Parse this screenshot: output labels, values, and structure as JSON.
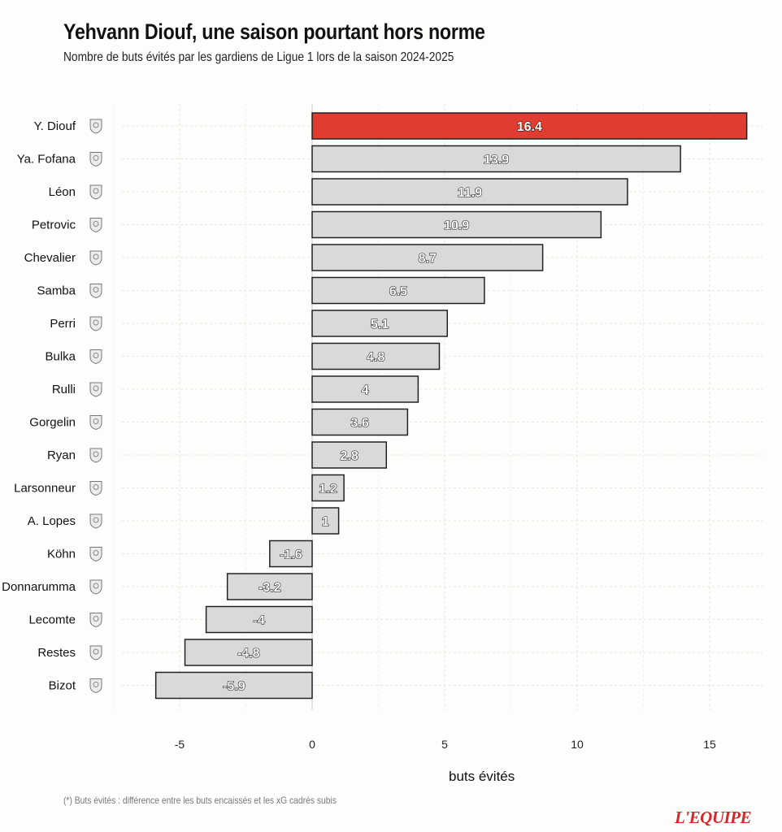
{
  "header": {
    "title": "Yehvann Diouf, une saison pourtant hors norme",
    "subtitle": "Nombre de buts évités par les gardiens de Ligue 1 lors de la saison 2024-2025"
  },
  "footer": {
    "footnote": "(*) Buts évités : différence entre les buts encaissés et les xG cadrés subis",
    "brand": "L'EQUIPE"
  },
  "colors": {
    "highlight": "#e03c31",
    "bar": "#d9d9d9",
    "bar_stroke": "#222222",
    "brand": "#d8262c"
  },
  "chart_data": {
    "type": "bar",
    "orientation": "horizontal",
    "title": "Yehvann Diouf, une saison pourtant hors norme",
    "subtitle": "Nombre de buts évités par les gardiens de Ligue 1 lors de la saison 2024-2025",
    "xlabel": "buts évités",
    "ylabel": "",
    "xlim": [
      -6,
      17
    ],
    "xticks": [
      -5,
      0,
      5,
      10,
      15
    ],
    "xtick_labels": [
      "-5",
      "0",
      "5",
      "10",
      "15"
    ],
    "grid": true,
    "highlight_index": 0,
    "categories": [
      "Y. Diouf",
      "Ya. Fofana",
      "Léon",
      "Petrovic",
      "Chevalier",
      "Samba",
      "Perri",
      "Bulka",
      "Rulli",
      "Gorgelin",
      "Ryan",
      "Larsonneur",
      "A. Lopes",
      "Köhn",
      "Donnarumma",
      "Lecomte",
      "Restes",
      "Bizot"
    ],
    "values": [
      16.4,
      13.9,
      11.9,
      10.9,
      8.7,
      6.5,
      5.1,
      4.8,
      4,
      3.6,
      2.8,
      1.2,
      1,
      -1.6,
      -3.2,
      -4,
      -4.8,
      -5.9
    ],
    "value_labels": [
      "16.4",
      "13.9",
      "11.9",
      "10.9",
      "8.7",
      "6.5",
      "5.1",
      "4.8",
      "4",
      "3.6",
      "2.8",
      "1.2",
      "1",
      "-1.6",
      "-3.2",
      "-4",
      "-4.8",
      "-5.9"
    ],
    "club_logos": [
      "reims-crest-icon",
      "angers-crest-icon",
      "auxerre-crest-icon",
      "strasbourg-crest-icon",
      "lille-crest-icon",
      "rennes-crest-icon",
      "lyon-crest-icon",
      "nice-crest-icon",
      "marseille-crest-icon",
      "le-havre-crest-icon",
      "lens-crest-icon",
      "saint-etienne-crest-icon",
      "nantes-crest-icon",
      "monaco-crest-icon",
      "psg-crest-icon",
      "montpellier-crest-icon",
      "toulouse-crest-icon",
      "brest-crest-icon"
    ]
  }
}
